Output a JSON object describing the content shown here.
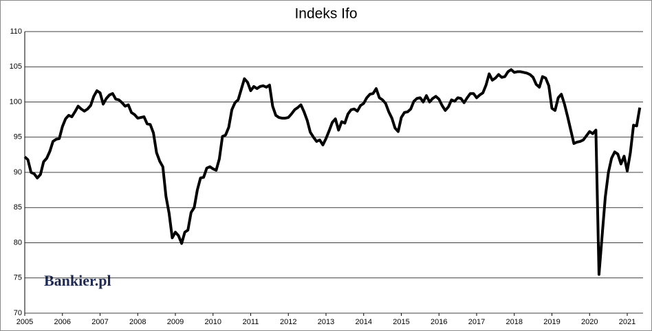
{
  "chart_data": {
    "type": "line",
    "title": "Indeks Ifo",
    "watermark": "Bankier.pl",
    "color": "#000000",
    "grid": true,
    "xlim": [
      2005,
      2021.42
    ],
    "xticks": [
      2005,
      2006,
      2007,
      2008,
      2009,
      2010,
      2011,
      2012,
      2013,
      2014,
      2015,
      2016,
      2017,
      2018,
      2019,
      2020,
      2021
    ],
    "ylim": [
      70,
      110
    ],
    "yticks": [
      70,
      75,
      80,
      85,
      90,
      95,
      100,
      105,
      110
    ],
    "x": [
      2005,
      2005.083,
      2005.167,
      2005.25,
      2005.333,
      2005.417,
      2005.5,
      2005.583,
      2005.667,
      2005.75,
      2005.833,
      2005.917,
      2006,
      2006.083,
      2006.167,
      2006.25,
      2006.333,
      2006.417,
      2006.5,
      2006.583,
      2006.667,
      2006.75,
      2006.833,
      2006.917,
      2007,
      2007.083,
      2007.167,
      2007.25,
      2007.333,
      2007.417,
      2007.5,
      2007.583,
      2007.667,
      2007.75,
      2007.833,
      2007.917,
      2008,
      2008.083,
      2008.167,
      2008.25,
      2008.333,
      2008.417,
      2008.5,
      2008.583,
      2008.667,
      2008.75,
      2008.833,
      2008.917,
      2009,
      2009.083,
      2009.167,
      2009.25,
      2009.333,
      2009.417,
      2009.5,
      2009.583,
      2009.667,
      2009.75,
      2009.833,
      2009.917,
      2010,
      2010.083,
      2010.167,
      2010.25,
      2010.333,
      2010.417,
      2010.5,
      2010.583,
      2010.667,
      2010.75,
      2010.833,
      2010.917,
      2011,
      2011.083,
      2011.167,
      2011.25,
      2011.333,
      2011.417,
      2011.5,
      2011.583,
      2011.667,
      2011.75,
      2011.833,
      2011.917,
      2012,
      2012.083,
      2012.167,
      2012.25,
      2012.333,
      2012.417,
      2012.5,
      2012.583,
      2012.667,
      2012.75,
      2012.833,
      2012.917,
      2013,
      2013.083,
      2013.167,
      2013.25,
      2013.333,
      2013.417,
      2013.5,
      2013.583,
      2013.667,
      2013.75,
      2013.833,
      2013.917,
      2014,
      2014.083,
      2014.167,
      2014.25,
      2014.333,
      2014.417,
      2014.5,
      2014.583,
      2014.667,
      2014.75,
      2014.833,
      2014.917,
      2015,
      2015.083,
      2015.167,
      2015.25,
      2015.333,
      2015.417,
      2015.5,
      2015.583,
      2015.667,
      2015.75,
      2015.833,
      2015.917,
      2016,
      2016.083,
      2016.167,
      2016.25,
      2016.333,
      2016.417,
      2016.5,
      2016.583,
      2016.667,
      2016.75,
      2016.833,
      2016.917,
      2017,
      2017.083,
      2017.167,
      2017.25,
      2017.333,
      2017.417,
      2017.5,
      2017.583,
      2017.667,
      2017.75,
      2017.833,
      2017.917,
      2018,
      2018.083,
      2018.167,
      2018.25,
      2018.333,
      2018.417,
      2018.5,
      2018.583,
      2018.667,
      2018.75,
      2018.833,
      2018.917,
      2019,
      2019.083,
      2019.167,
      2019.25,
      2019.333,
      2019.417,
      2019.5,
      2019.583,
      2019.667,
      2019.75,
      2019.833,
      2019.917,
      2020,
      2020.083,
      2020.167,
      2020.25,
      2020.333,
      2020.417,
      2020.5,
      2020.583,
      2020.667,
      2020.75,
      2020.833,
      2020.917,
      2021,
      2021.083,
      2021.167,
      2021.25,
      2021.333
    ],
    "values": [
      92.2,
      91.8,
      90.0,
      89.8,
      89.2,
      89.7,
      91.5,
      92.0,
      93.0,
      94.4,
      94.7,
      94.8,
      96.5,
      97.6,
      98.1,
      97.9,
      98.6,
      99.4,
      99.0,
      98.7,
      99.0,
      99.5,
      100.8,
      101.6,
      101.3,
      99.7,
      100.5,
      101.0,
      101.2,
      100.4,
      100.3,
      99.9,
      99.4,
      99.6,
      98.5,
      98.2,
      97.7,
      97.8,
      97.9,
      96.9,
      96.8,
      95.6,
      92.8,
      91.6,
      90.8,
      86.6,
      84.2,
      80.7,
      81.5,
      81.0,
      79.9,
      81.5,
      81.8,
      84.3,
      85.0,
      87.5,
      89.2,
      89.3,
      90.6,
      90.8,
      90.5,
      90.3,
      91.9,
      95.1,
      95.3,
      96.4,
      98.9,
      99.9,
      100.3,
      101.8,
      103.3,
      102.8,
      101.6,
      102.2,
      101.9,
      102.2,
      102.3,
      102.1,
      102.4,
      99.4,
      98.1,
      97.8,
      97.7,
      97.7,
      97.8,
      98.3,
      98.9,
      99.2,
      99.6,
      98.6,
      97.4,
      95.7,
      95.0,
      94.4,
      94.6,
      93.9,
      94.8,
      95.9,
      97.1,
      97.6,
      96.0,
      97.2,
      97.0,
      98.3,
      98.9,
      99.0,
      98.7,
      99.5,
      99.8,
      100.6,
      101.1,
      101.2,
      101.9,
      100.6,
      100.3,
      99.8,
      98.6,
      97.7,
      96.3,
      95.8,
      97.8,
      98.5,
      98.6,
      99.0,
      100.1,
      100.5,
      100.6,
      100.0,
      100.9,
      100.0,
      100.5,
      100.8,
      100.4,
      99.5,
      98.8,
      99.3,
      100.3,
      100.1,
      100.6,
      100.5,
      99.9,
      100.6,
      101.2,
      101.2,
      100.6,
      101.0,
      101.3,
      102.4,
      104.0,
      103.1,
      103.4,
      103.9,
      103.5,
      103.6,
      104.3,
      104.6,
      104.2,
      104.3,
      104.3,
      104.2,
      104.1,
      103.9,
      103.5,
      102.5,
      102.1,
      103.6,
      103.4,
      102.3,
      99.1,
      98.8,
      100.6,
      101.1,
      99.7,
      97.9,
      96.0,
      94.1,
      94.3,
      94.4,
      94.6,
      95.2,
      95.8,
      95.5,
      96.0,
      75.5,
      81.0,
      86.5,
      90.0,
      92.0,
      92.9,
      92.6,
      91.2,
      92.3,
      90.2,
      92.8,
      96.7,
      96.6,
      99.2
    ]
  }
}
